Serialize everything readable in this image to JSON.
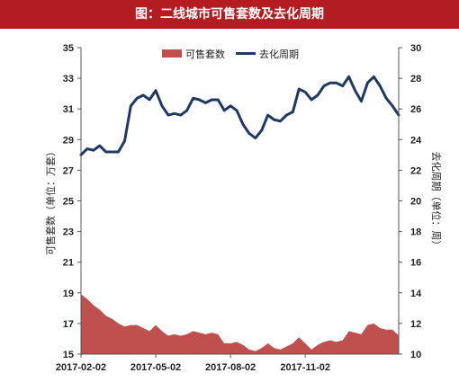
{
  "title": "图：二线城市可售套数及去化周期",
  "chart_data": {
    "type": "line",
    "title": "图：二线城市可售套数及去化周期",
    "legend_position": "top",
    "left_axis": {
      "label": "可售套数（单位：万套）",
      "ylim": [
        15,
        35
      ],
      "ticks": [
        "15",
        "17",
        "19",
        "21",
        "23",
        "25",
        "27",
        "29",
        "31",
        "33",
        "35"
      ]
    },
    "right_axis": {
      "label": "去化周期（单位：周）",
      "ylim": [
        10,
        30
      ],
      "ticks": [
        "10",
        "12",
        "14",
        "16",
        "18",
        "20",
        "22",
        "24",
        "26",
        "28",
        "30"
      ]
    },
    "x_tick_labels": [
      "2017-02-02",
      "2017-05-02",
      "2017-08-02",
      "2017-11-02"
    ],
    "x_tick_positions": [
      0,
      12,
      24,
      36
    ],
    "series": [
      {
        "name": "可售套数",
        "type": "area",
        "axis": "left",
        "color": "#c0504d",
        "values": [
          18.9,
          18.6,
          18.2,
          17.9,
          17.5,
          17.3,
          17.0,
          16.8,
          16.9,
          16.9,
          16.7,
          16.5,
          16.9,
          16.5,
          16.2,
          16.3,
          16.2,
          16.3,
          16.5,
          16.4,
          16.3,
          16.4,
          16.3,
          15.7,
          15.7,
          15.8,
          15.6,
          15.3,
          15.2,
          15.4,
          15.7,
          15.4,
          15.3,
          15.5,
          15.7,
          16.1,
          15.7,
          15.3,
          15.6,
          15.8,
          15.9,
          15.8,
          15.9,
          16.5,
          16.4,
          16.3,
          16.9,
          17.0,
          16.7,
          16.6,
          16.6,
          16.2
        ]
      },
      {
        "name": "去化周期",
        "type": "line",
        "axis": "right",
        "color": "#1f3864",
        "values": [
          23.0,
          23.4,
          23.3,
          23.6,
          23.2,
          23.2,
          23.2,
          23.9,
          26.2,
          26.7,
          26.9,
          26.6,
          27.2,
          26.2,
          25.6,
          25.7,
          25.6,
          25.9,
          26.7,
          26.6,
          26.4,
          26.6,
          26.6,
          25.9,
          26.2,
          25.9,
          25.0,
          24.4,
          24.1,
          24.6,
          25.6,
          25.3,
          25.2,
          25.6,
          25.8,
          27.3,
          27.1,
          26.6,
          26.9,
          27.5,
          27.7,
          27.7,
          27.5,
          28.1,
          27.2,
          26.5,
          27.7,
          28.1,
          27.5,
          26.7,
          26.2,
          25.6
        ]
      }
    ]
  }
}
